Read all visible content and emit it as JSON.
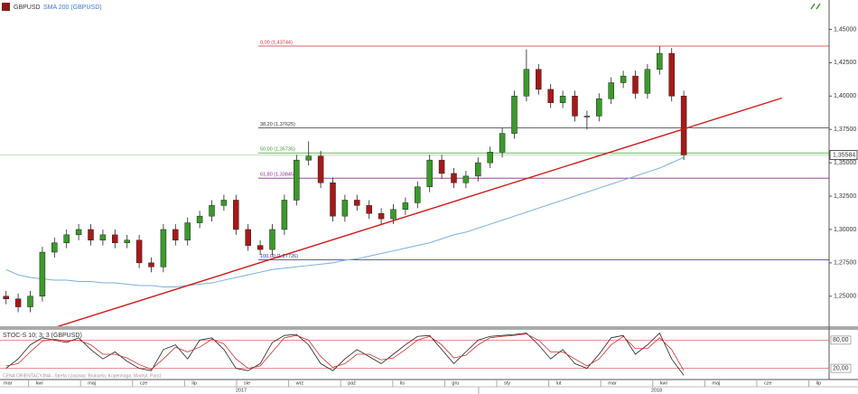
{
  "chart_data": {
    "type": "candlestick",
    "symbol": "GBPUSD",
    "indicator": "SMA 200 (GBPUSD)",
    "ylim": [
      1.2275,
      1.4625
    ],
    "yticks": [
      {
        "value": 1.25,
        "label": "1,25000"
      },
      {
        "value": 1.275,
        "label": "1,27500"
      },
      {
        "value": 1.3,
        "label": "1,30000"
      },
      {
        "value": 1.325,
        "label": "1,32500"
      },
      {
        "value": 1.35,
        "label": "1,35000"
      },
      {
        "value": 1.375,
        "label": "1,37500"
      },
      {
        "value": 1.4,
        "label": "1,40000"
      },
      {
        "value": 1.425,
        "label": "1,42500"
      },
      {
        "value": 1.45,
        "label": "1,45000"
      }
    ],
    "open": [
      1.25,
      1.248,
      1.242,
      1.25,
      1.283,
      1.29,
      1.296,
      1.3,
      1.292,
      1.296,
      1.29,
      1.292,
      1.275,
      1.272,
      1.3,
      1.292,
      1.305,
      1.31,
      1.318,
      1.322,
      1.3,
      1.288,
      1.285,
      1.3,
      1.322,
      1.352,
      1.355,
      1.335,
      1.31,
      1.322,
      1.318,
      1.312,
      1.308,
      1.315,
      1.32,
      1.332,
      1.352,
      1.342,
      1.335,
      1.34,
      1.35,
      1.358,
      1.372,
      1.4,
      1.42,
      1.405,
      1.395,
      1.4,
      1.385,
      1.385,
      1.398,
      1.41,
      1.415,
      1.402,
      1.42,
      1.432,
      1.4
    ],
    "high": [
      1.254,
      1.252,
      1.254,
      1.287,
      1.294,
      1.3,
      1.304,
      1.304,
      1.3,
      1.3,
      1.296,
      1.296,
      1.279,
      1.304,
      1.304,
      1.309,
      1.314,
      1.322,
      1.326,
      1.326,
      1.304,
      1.292,
      1.304,
      1.326,
      1.356,
      1.366,
      1.359,
      1.339,
      1.326,
      1.326,
      1.322,
      1.316,
      1.319,
      1.324,
      1.336,
      1.356,
      1.356,
      1.346,
      1.344,
      1.354,
      1.362,
      1.376,
      1.404,
      1.435,
      1.424,
      1.409,
      1.404,
      1.404,
      1.389,
      1.402,
      1.414,
      1.419,
      1.419,
      1.424,
      1.4374,
      1.436,
      1.404
    ],
    "low": [
      1.244,
      1.238,
      1.238,
      1.246,
      1.279,
      1.286,
      1.292,
      1.288,
      1.288,
      1.286,
      1.286,
      1.271,
      1.268,
      1.268,
      1.288,
      1.288,
      1.301,
      1.306,
      1.314,
      1.296,
      1.284,
      1.281,
      1.281,
      1.296,
      1.318,
      1.348,
      1.331,
      1.306,
      1.306,
      1.314,
      1.308,
      1.304,
      1.304,
      1.311,
      1.316,
      1.328,
      1.338,
      1.331,
      1.331,
      1.336,
      1.346,
      1.354,
      1.368,
      1.396,
      1.401,
      1.391,
      1.391,
      1.381,
      1.375,
      1.381,
      1.394,
      1.406,
      1.398,
      1.398,
      1.416,
      1.396,
      1.352
    ],
    "close": [
      1.248,
      1.242,
      1.25,
      1.283,
      1.29,
      1.296,
      1.3,
      1.292,
      1.296,
      1.29,
      1.292,
      1.275,
      1.272,
      1.3,
      1.292,
      1.305,
      1.31,
      1.318,
      1.322,
      1.3,
      1.288,
      1.285,
      1.3,
      1.322,
      1.352,
      1.355,
      1.335,
      1.31,
      1.322,
      1.318,
      1.312,
      1.308,
      1.315,
      1.32,
      1.332,
      1.352,
      1.342,
      1.335,
      1.34,
      1.35,
      1.358,
      1.372,
      1.4,
      1.42,
      1.405,
      1.395,
      1.4,
      1.385,
      1.385,
      1.398,
      1.41,
      1.415,
      1.402,
      1.42,
      1.432,
      1.4,
      1.35584
    ],
    "up_color": "#3a9a2a",
    "down_color": "#a81818",
    "sma": {
      "color": "#7aaedc",
      "values": [
        1.27,
        1.266,
        1.264,
        1.263,
        1.262,
        1.262,
        1.261,
        1.261,
        1.26,
        1.26,
        1.259,
        1.258,
        1.258,
        1.257,
        1.257,
        1.258,
        1.259,
        1.26,
        1.262,
        1.264,
        1.266,
        1.268,
        1.27,
        1.271,
        1.272,
        1.273,
        1.274,
        1.275,
        1.277,
        1.278,
        1.28,
        1.282,
        1.284,
        1.286,
        1.288,
        1.29,
        1.293,
        1.296,
        1.298,
        1.301,
        1.304,
        1.307,
        1.31,
        1.313,
        1.316,
        1.319,
        1.322,
        1.325,
        1.328,
        1.331,
        1.334,
        1.337,
        1.34,
        1.343,
        1.346,
        1.35,
        1.354
      ]
    },
    "last_price": {
      "value": 1.35584,
      "label": "1,35584"
    },
    "fib_levels": [
      {
        "label": "0,00 (1,43744)",
        "value": 1.43744,
        "color": "#c83030"
      },
      {
        "label": "38,20 (1,37625)",
        "value": 1.37625,
        "color": "#333333"
      },
      {
        "label": "50,00 (1,35735)",
        "value": 1.35735,
        "color": "#3a9a2a"
      },
      {
        "label": "61,80 (1,33845)",
        "value": 1.33845,
        "color": "#8a2a8a"
      },
      {
        "label": "100,00 (1,27726)",
        "value": 1.27726,
        "color": "#2a2a9a"
      }
    ],
    "trendline": {
      "color": "#cc1a1a",
      "x": [
        3.2,
        64.1
      ],
      "y": [
        1.2242,
        1.3985
      ]
    },
    "stochastic": {
      "title": "STOC-S 10; 3; 3 (GBPUSD)",
      "ylim": [
        0,
        100
      ],
      "yticks": [
        {
          "value": 80,
          "label": "80,00"
        },
        {
          "value": 20,
          "label": "20,00"
        }
      ],
      "series": [
        {
          "color": "#222222",
          "values": [
            20,
            40,
            70,
            85,
            80,
            75,
            85,
            60,
            40,
            55,
            35,
            20,
            15,
            60,
            70,
            40,
            80,
            85,
            60,
            20,
            15,
            30,
            75,
            90,
            92,
            70,
            30,
            15,
            40,
            60,
            45,
            30,
            50,
            70,
            88,
            90,
            60,
            30,
            55,
            80,
            88,
            90,
            92,
            95,
            70,
            40,
            60,
            30,
            20,
            50,
            85,
            90,
            50,
            70,
            95,
            40,
            5
          ]
        },
        {
          "color": "#c83030",
          "values": [
            25,
            30,
            55,
            78,
            82,
            78,
            80,
            70,
            50,
            50,
            42,
            28,
            18,
            40,
            65,
            55,
            65,
            82,
            72,
            40,
            20,
            25,
            55,
            85,
            90,
            80,
            45,
            22,
            30,
            50,
            50,
            38,
            42,
            60,
            80,
            88,
            70,
            42,
            48,
            70,
            85,
            88,
            90,
            93,
            80,
            55,
            55,
            40,
            25,
            40,
            70,
            88,
            62,
            62,
            85,
            60,
            15
          ]
        }
      ]
    },
    "footnote": "CENA ORIENTACYJNA - Strefa czasowa: Bruksela, Kopenhaga, Madryt, Paryż",
    "months": [
      "mar",
      "kwi",
      "maj",
      "cze",
      "lip",
      "sie",
      "wrz",
      "paź",
      "lis",
      "gru",
      "sty",
      "lut",
      "mar",
      "kwi",
      "maj",
      "cze",
      "lip"
    ],
    "years": [
      "2017",
      "2018"
    ]
  }
}
